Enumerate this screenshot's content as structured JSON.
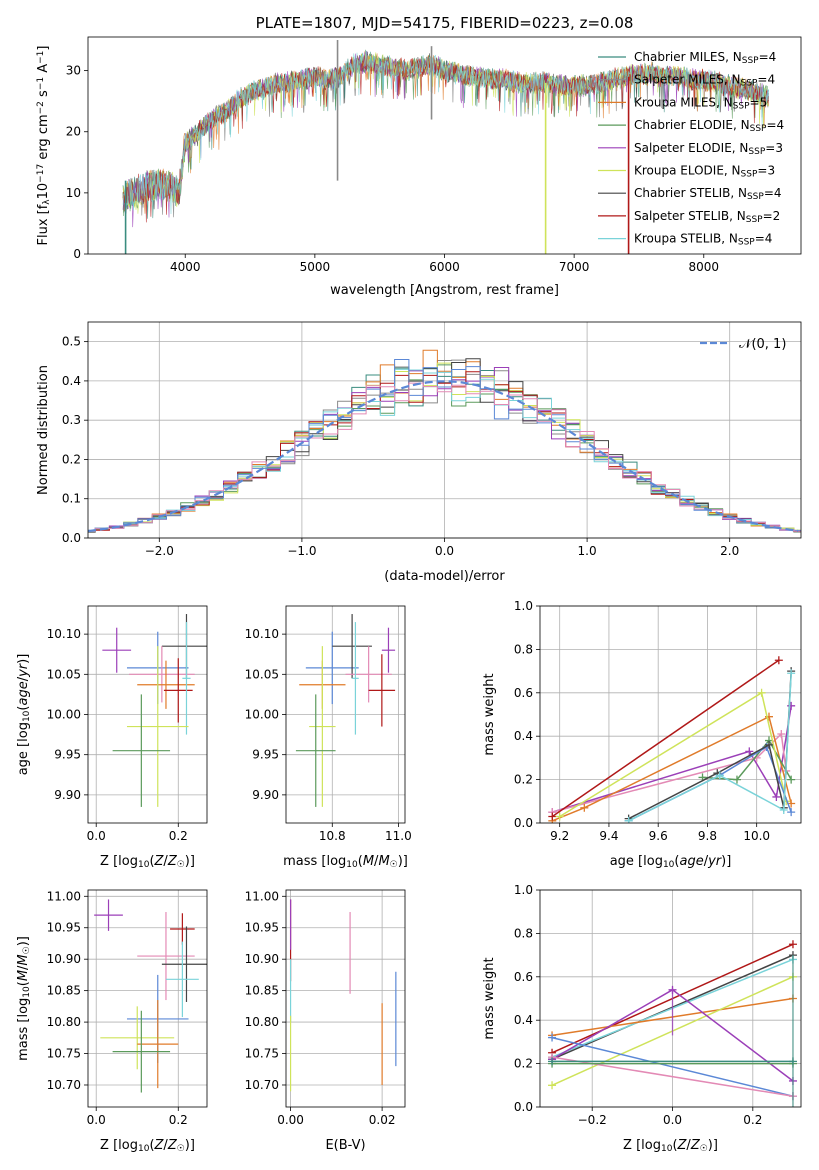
{
  "colors": {
    "chabrier_miles": "#3a8c7f",
    "salpeter_miles": "#8a8a8a",
    "kroupa_miles": "#e07b2a",
    "chabrier_elodie": "#5b9a5b",
    "salpeter_elodie": "#9b3fb8",
    "kroupa_elodie": "#cfe35a",
    "chabrier_stelib": "#444444",
    "salpeter_stelib": "#b01818",
    "kroupa_stelib": "#7ad3d9",
    "blue": "#5b88d6",
    "pink": "#e38ab5",
    "normal_line": "#5b88d6"
  },
  "chart_data": [
    {
      "id": "spectrum",
      "type": "line",
      "title": "PLATE=1807, MJD=54175, FIBERID=0223, z=0.08",
      "xlabel": "wavelength [Angstrom, rest frame]",
      "ylabel": "Flux [f_λ 10^-17 erg cm^-2 s^-1 A^-1]",
      "xlim": [
        3250,
        8750
      ],
      "ylim": [
        0,
        35.5
      ],
      "xticks": [
        4000,
        5000,
        6000,
        7000,
        8000
      ],
      "yticks": [
        0,
        10,
        20,
        30
      ],
      "grid": false,
      "legend_position": "top-right",
      "legend": [
        {
          "label": "Chabrier MILES, N",
          "sub": "SSP",
          "value": "=4",
          "color": "chabrier_miles"
        },
        {
          "label": "Salpeter MILES, N",
          "sub": "SSP",
          "value": "=4",
          "color": "salpeter_miles"
        },
        {
          "label": "Kroupa MILES, N",
          "sub": "SSP",
          "value": "=5",
          "color": "kroupa_miles"
        },
        {
          "label": "Chabrier ELODIE, N",
          "sub": "SSP",
          "value": "=4",
          "color": "chabrier_elodie"
        },
        {
          "label": "Salpeter ELODIE, N",
          "sub": "SSP",
          "value": "=3",
          "color": "salpeter_elodie"
        },
        {
          "label": "Kroupa ELODIE, N",
          "sub": "SSP",
          "value": "=3",
          "color": "kroupa_elodie"
        },
        {
          "label": "Chabrier STELIB, N",
          "sub": "SSP",
          "value": "=4",
          "color": "chabrier_stelib"
        },
        {
          "label": "Salpeter STELIB, N",
          "sub": "SSP",
          "value": "=2",
          "color": "salpeter_stelib"
        },
        {
          "label": "Kroupa STELIB, N",
          "sub": "SSP",
          "value": "=4",
          "color": "kroupa_stelib"
        }
      ],
      "continuum": [
        [
          3500,
          0
        ],
        [
          3520,
          9
        ],
        [
          3600,
          10
        ],
        [
          3700,
          11
        ],
        [
          3800,
          11.5
        ],
        [
          3900,
          11
        ],
        [
          3950,
          10
        ],
        [
          4000,
          18
        ],
        [
          4100,
          20
        ],
        [
          4200,
          22
        ],
        [
          4300,
          23
        ],
        [
          4400,
          25
        ],
        [
          4500,
          26.5
        ],
        [
          4600,
          27
        ],
        [
          4700,
          28
        ],
        [
          4800,
          28
        ],
        [
          4900,
          28.5
        ],
        [
          5000,
          29
        ],
        [
          5100,
          28.5
        ],
        [
          5200,
          29
        ],
        [
          5300,
          31
        ],
        [
          5400,
          31.5
        ],
        [
          5500,
          31
        ],
        [
          5600,
          30.5
        ],
        [
          5700,
          30
        ],
        [
          5800,
          30.5
        ],
        [
          5900,
          31
        ],
        [
          6000,
          30
        ],
        [
          6100,
          29.5
        ],
        [
          6200,
          29
        ],
        [
          6300,
          29
        ],
        [
          6400,
          28.5
        ],
        [
          6500,
          28.5
        ],
        [
          6600,
          28
        ],
        [
          6700,
          28
        ],
        [
          6800,
          28
        ],
        [
          6900,
          27.5
        ],
        [
          7000,
          27.5
        ],
        [
          7100,
          27.5
        ],
        [
          7200,
          28
        ],
        [
          7300,
          28.5
        ],
        [
          7400,
          29
        ],
        [
          7500,
          29.5
        ],
        [
          7600,
          29.5
        ],
        [
          7700,
          29
        ],
        [
          7800,
          29
        ],
        [
          7900,
          28.5
        ],
        [
          8000,
          28.5
        ],
        [
          8100,
          28
        ],
        [
          8200,
          27.5
        ],
        [
          8300,
          27
        ],
        [
          8400,
          26.5
        ],
        [
          8500,
          25.5
        ]
      ],
      "spikes": [
        {
          "x": 3540,
          "y0": 0,
          "y1": 12,
          "color": "chabrier_miles"
        },
        {
          "x": 5175,
          "y0": 12,
          "y1": 35,
          "color": "salpeter_miles"
        },
        {
          "x": 5900,
          "y0": 22,
          "y1": 34,
          "color": "salpeter_miles"
        },
        {
          "x": 6780,
          "y0": 0,
          "y1": 28,
          "color": "kroupa_elodie"
        },
        {
          "x": 7420,
          "y0": 0,
          "y1": 29,
          "color": "salpeter_stelib"
        }
      ]
    },
    {
      "id": "residuals",
      "type": "step",
      "xlabel": "(data-model)/error",
      "ylabel": "Normed distribution",
      "xlim": [
        -2.5,
        2.5
      ],
      "ylim": [
        0,
        0.55
      ],
      "xticks": [
        -2,
        -1,
        0,
        1,
        2
      ],
      "yticks": [
        0.0,
        0.1,
        0.2,
        0.3,
        0.4,
        0.5
      ],
      "grid": true,
      "legend_position": "top-right",
      "legend": [
        {
          "label": "𝒩(0, 1)",
          "color": "normal_line",
          "style": "dashed"
        }
      ],
      "bin_width": 0.1,
      "series_colors": [
        "chabrier_miles",
        "salpeter_miles",
        "kroupa_miles",
        "chabrier_elodie",
        "salpeter_elodie",
        "kroupa_elodie",
        "chabrier_stelib",
        "salpeter_stelib",
        "kroupa_stelib",
        "blue",
        "pink"
      ]
    },
    {
      "id": "age_vs_z",
      "type": "errorbar",
      "xlabel": "Z [log10(Z/Z☉)]",
      "ylabel": "age [log10(age/yr)]",
      "xlim": [
        -0.02,
        0.27
      ],
      "ylim": [
        9.865,
        10.135
      ],
      "xticks": [
        0.0,
        0.2
      ],
      "yticks": [
        9.9,
        9.95,
        10.0,
        10.05,
        10.1
      ],
      "grid": true,
      "points": [
        {
          "x": 0.05,
          "y": 10.08,
          "xerr": 0.035,
          "yerr": 0.028,
          "color": "salpeter_elodie"
        },
        {
          "x": 0.15,
          "y": 10.058,
          "xerr": 0.075,
          "yerr": 0.045,
          "color": "blue"
        },
        {
          "x": 0.22,
          "y": 10.085,
          "xerr": 0.06,
          "yerr": 0.04,
          "color": "chabrier_stelib"
        },
        {
          "x": 0.16,
          "y": 10.05,
          "xerr": 0.08,
          "yerr": 0.035,
          "color": "pink"
        },
        {
          "x": 0.17,
          "y": 10.037,
          "xerr": 0.07,
          "yerr": 0.03,
          "color": "kroupa_miles"
        },
        {
          "x": 0.2,
          "y": 10.03,
          "xerr": 0.035,
          "yerr": 0.04,
          "color": "salpeter_stelib"
        },
        {
          "x": 0.22,
          "y": 10.045,
          "xerr": 0.01,
          "yerr": 0.07,
          "color": "kroupa_stelib"
        },
        {
          "x": 0.15,
          "y": 9.985,
          "xerr": 0.075,
          "yerr": 0.1,
          "color": "kroupa_elodie"
        },
        {
          "x": 0.11,
          "y": 9.955,
          "xerr": 0.07,
          "yerr": 0.07,
          "color": "chabrier_elodie"
        }
      ]
    },
    {
      "id": "age_vs_mass",
      "type": "errorbar",
      "xlabel": "mass [log10(M/M☉)]",
      "ylabel": "",
      "xlim": [
        10.66,
        11.02
      ],
      "ylim": [
        9.865,
        10.135
      ],
      "xticks": [
        10.8,
        11.0
      ],
      "yticks": [
        9.9,
        9.95,
        10.0,
        10.05,
        10.1
      ],
      "grid": true,
      "points": [
        {
          "x": 10.97,
          "y": 10.08,
          "xerr": 0.02,
          "yerr": 0.028,
          "color": "salpeter_elodie"
        },
        {
          "x": 10.8,
          "y": 10.058,
          "xerr": 0.08,
          "yerr": 0.045,
          "color": "blue"
        },
        {
          "x": 10.86,
          "y": 10.085,
          "xerr": 0.06,
          "yerr": 0.04,
          "color": "chabrier_stelib"
        },
        {
          "x": 10.91,
          "y": 10.05,
          "xerr": 0.07,
          "yerr": 0.035,
          "color": "pink"
        },
        {
          "x": 10.77,
          "y": 10.037,
          "xerr": 0.07,
          "yerr": 0.03,
          "color": "kroupa_miles"
        },
        {
          "x": 10.95,
          "y": 10.03,
          "xerr": 0.04,
          "yerr": 0.045,
          "color": "salpeter_stelib"
        },
        {
          "x": 10.87,
          "y": 10.045,
          "xerr": 0.01,
          "yerr": 0.07,
          "color": "kroupa_stelib"
        },
        {
          "x": 10.77,
          "y": 9.985,
          "xerr": 0.04,
          "yerr": 0.1,
          "color": "kroupa_elodie"
        },
        {
          "x": 10.75,
          "y": 9.955,
          "xerr": 0.06,
          "yerr": 0.07,
          "color": "chabrier_elodie"
        }
      ]
    },
    {
      "id": "weight_vs_age",
      "type": "line",
      "xlabel": "age [log10(age/yr)]",
      "ylabel": "mass weight",
      "xlim": [
        9.12,
        10.18
      ],
      "ylim": [
        0,
        1
      ],
      "xticks": [
        9.2,
        9.4,
        9.6,
        9.8,
        10.0
      ],
      "yticks": [
        0.0,
        0.2,
        0.4,
        0.6,
        0.8,
        1.0
      ],
      "grid": true,
      "series": [
        {
          "color": "salpeter_elodie",
          "points": [
            [
              9.17,
              0.05
            ],
            [
              9.97,
              0.33
            ],
            [
              10.08,
              0.12
            ],
            [
              10.14,
              0.54
            ]
          ]
        },
        {
          "color": "pink",
          "points": [
            [
              9.17,
              0.05
            ],
            [
              10.0,
              0.3
            ],
            [
              10.1,
              0.41
            ],
            [
              10.12,
              0.24
            ]
          ]
        },
        {
          "color": "kroupa_miles",
          "points": [
            [
              9.17,
              0.01
            ],
            [
              9.3,
              0.07
            ],
            [
              10.05,
              0.49
            ],
            [
              10.14,
              0.09
            ]
          ]
        },
        {
          "color": "salpeter_stelib",
          "points": [
            [
              9.17,
              0.03
            ],
            [
              10.09,
              0.75
            ]
          ]
        },
        {
          "color": "chabrier_elodie",
          "points": [
            [
              9.78,
              0.21
            ],
            [
              9.92,
              0.2
            ],
            [
              10.05,
              0.38
            ],
            [
              10.14,
              0.2
            ]
          ]
        },
        {
          "color": "kroupa_elodie",
          "points": [
            [
              9.2,
              0.03
            ],
            [
              10.02,
              0.6
            ],
            [
              10.12,
              0.1
            ]
          ]
        },
        {
          "color": "blue",
          "points": [
            [
              9.48,
              0.01
            ],
            [
              9.85,
              0.22
            ],
            [
              10.04,
              0.35
            ],
            [
              10.14,
              0.05
            ]
          ]
        },
        {
          "color": "chabrier_stelib",
          "points": [
            [
              9.48,
              0.02
            ],
            [
              9.84,
              0.23
            ],
            [
              10.05,
              0.36
            ],
            [
              10.11,
              0.07
            ],
            [
              10.14,
              0.7
            ]
          ]
        },
        {
          "color": "kroupa_stelib",
          "points": [
            [
              9.48,
              0.01
            ],
            [
              9.85,
              0.22
            ],
            [
              10.11,
              0.06
            ],
            [
              10.14,
              0.69
            ]
          ]
        }
      ]
    },
    {
      "id": "mass_vs_z",
      "type": "errorbar",
      "xlabel": "Z [log10(Z/Z☉)]",
      "ylabel": "mass [log10(M/M☉)]",
      "xlim": [
        -0.02,
        0.27
      ],
      "ylim": [
        10.665,
        11.01
      ],
      "xticks": [
        0.0,
        0.2
      ],
      "yticks": [
        10.7,
        10.75,
        10.8,
        10.85,
        10.9,
        10.95,
        11.0
      ],
      "grid": true,
      "points": [
        {
          "x": 0.03,
          "y": 10.97,
          "xerr": 0.035,
          "yerr": 0.025,
          "color": "salpeter_elodie"
        },
        {
          "x": 0.21,
          "y": 10.948,
          "xerr": 0.03,
          "yerr": 0.025,
          "color": "salpeter_stelib"
        },
        {
          "x": 0.17,
          "y": 10.905,
          "xerr": 0.07,
          "yerr": 0.07,
          "color": "pink"
        },
        {
          "x": 0.22,
          "y": 10.892,
          "xerr": 0.06,
          "yerr": 0.06,
          "color": "chabrier_stelib"
        },
        {
          "x": 0.21,
          "y": 10.868,
          "xerr": 0.04,
          "yerr": 0.06,
          "color": "kroupa_stelib"
        },
        {
          "x": 0.15,
          "y": 10.805,
          "xerr": 0.075,
          "yerr": 0.07,
          "color": "blue"
        },
        {
          "x": 0.1,
          "y": 10.775,
          "xerr": 0.09,
          "yerr": 0.05,
          "color": "kroupa_elodie"
        },
        {
          "x": 0.15,
          "y": 10.765,
          "xerr": 0.05,
          "yerr": 0.07,
          "color": "kroupa_miles"
        },
        {
          "x": 0.11,
          "y": 10.753,
          "xerr": 0.07,
          "yerr": 0.065,
          "color": "chabrier_elodie"
        }
      ]
    },
    {
      "id": "mass_vs_ebv",
      "type": "errorbar",
      "xlabel": "E(B-V)",
      "ylabel": "",
      "xlim": [
        -0.001,
        0.025
      ],
      "ylim": [
        10.665,
        11.01
      ],
      "xticks": [
        0.0,
        0.02
      ],
      "yticks": [
        10.7,
        10.75,
        10.8,
        10.85,
        10.9,
        10.95,
        11.0
      ],
      "grid": true,
      "points": [
        {
          "x": 0.0,
          "y": 10.93,
          "xerr": 0.0,
          "yerr": 0.065,
          "color": "salpeter_stelib"
        },
        {
          "x": 0.0,
          "y": 10.85,
          "xerr": 0.0,
          "yerr": 0.05,
          "color": "kroupa_stelib"
        },
        {
          "x": 0.0,
          "y": 10.75,
          "xerr": 0.0,
          "yerr": 0.06,
          "color": "kroupa_elodie"
        },
        {
          "x": 0.0,
          "y": 10.955,
          "xerr": 0.0,
          "yerr": 0.04,
          "color": "salpeter_elodie"
        },
        {
          "x": 0.013,
          "y": 10.91,
          "xerr": 0.0,
          "yerr": 0.065,
          "color": "pink"
        },
        {
          "x": 0.02,
          "y": 10.765,
          "xerr": 0.0,
          "yerr": 0.065,
          "color": "kroupa_miles"
        },
        {
          "x": 0.023,
          "y": 10.805,
          "xerr": 0.0,
          "yerr": 0.075,
          "color": "blue"
        }
      ]
    },
    {
      "id": "weight_vs_z",
      "type": "line",
      "xlabel": "Z [log10(Z/Z☉)]",
      "ylabel": "mass weight",
      "xlim": [
        -0.33,
        0.32
      ],
      "ylim": [
        0,
        1
      ],
      "xticks": [
        -0.2,
        0.0,
        0.2
      ],
      "yticks": [
        0.0,
        0.2,
        0.4,
        0.6,
        0.8,
        1.0
      ],
      "grid": true,
      "series": [
        {
          "color": "salpeter_stelib",
          "points": [
            [
              -0.3,
              0.25
            ],
            [
              0.3,
              0.75
            ]
          ]
        },
        {
          "color": "chabrier_stelib",
          "points": [
            [
              -0.3,
              0.22
            ],
            [
              0.3,
              0.7
            ]
          ]
        },
        {
          "color": "kroupa_stelib",
          "points": [
            [
              -0.3,
              0.23
            ],
            [
              0.3,
              0.68
            ]
          ]
        },
        {
          "color": "kroupa_miles",
          "points": [
            [
              -0.3,
              0.33
            ],
            [
              0.3,
              0.5
            ]
          ]
        },
        {
          "color": "kroupa_elodie",
          "points": [
            [
              -0.3,
              0.1
            ],
            [
              0.3,
              0.6
            ]
          ]
        },
        {
          "color": "salpeter_elodie",
          "points": [
            [
              -0.3,
              0.22
            ],
            [
              0.0,
              0.54
            ],
            [
              0.3,
              0.12
            ]
          ]
        },
        {
          "color": "blue",
          "points": [
            [
              -0.3,
              0.32
            ],
            [
              0.3,
              0.05
            ]
          ]
        },
        {
          "color": "pink",
          "points": [
            [
              -0.3,
              0.23
            ],
            [
              0.3,
              0.05
            ]
          ]
        },
        {
          "color": "chabrier_elodie",
          "points": [
            [
              -0.3,
              0.2
            ],
            [
              0.3,
              0.2
            ]
          ]
        },
        {
          "color": "chabrier_miles",
          "points": [
            [
              -0.3,
              0.21
            ],
            [
              0.3,
              0.21
            ]
          ]
        }
      ],
      "vertical_ticks": [
        {
          "x": 0.0,
          "y0": 0.33,
          "y1": 0.55,
          "color": "salpeter_elodie"
        },
        {
          "x": 0.3,
          "y0": 0.0,
          "y1": 0.7,
          "color": "chabrier_miles"
        }
      ]
    }
  ]
}
